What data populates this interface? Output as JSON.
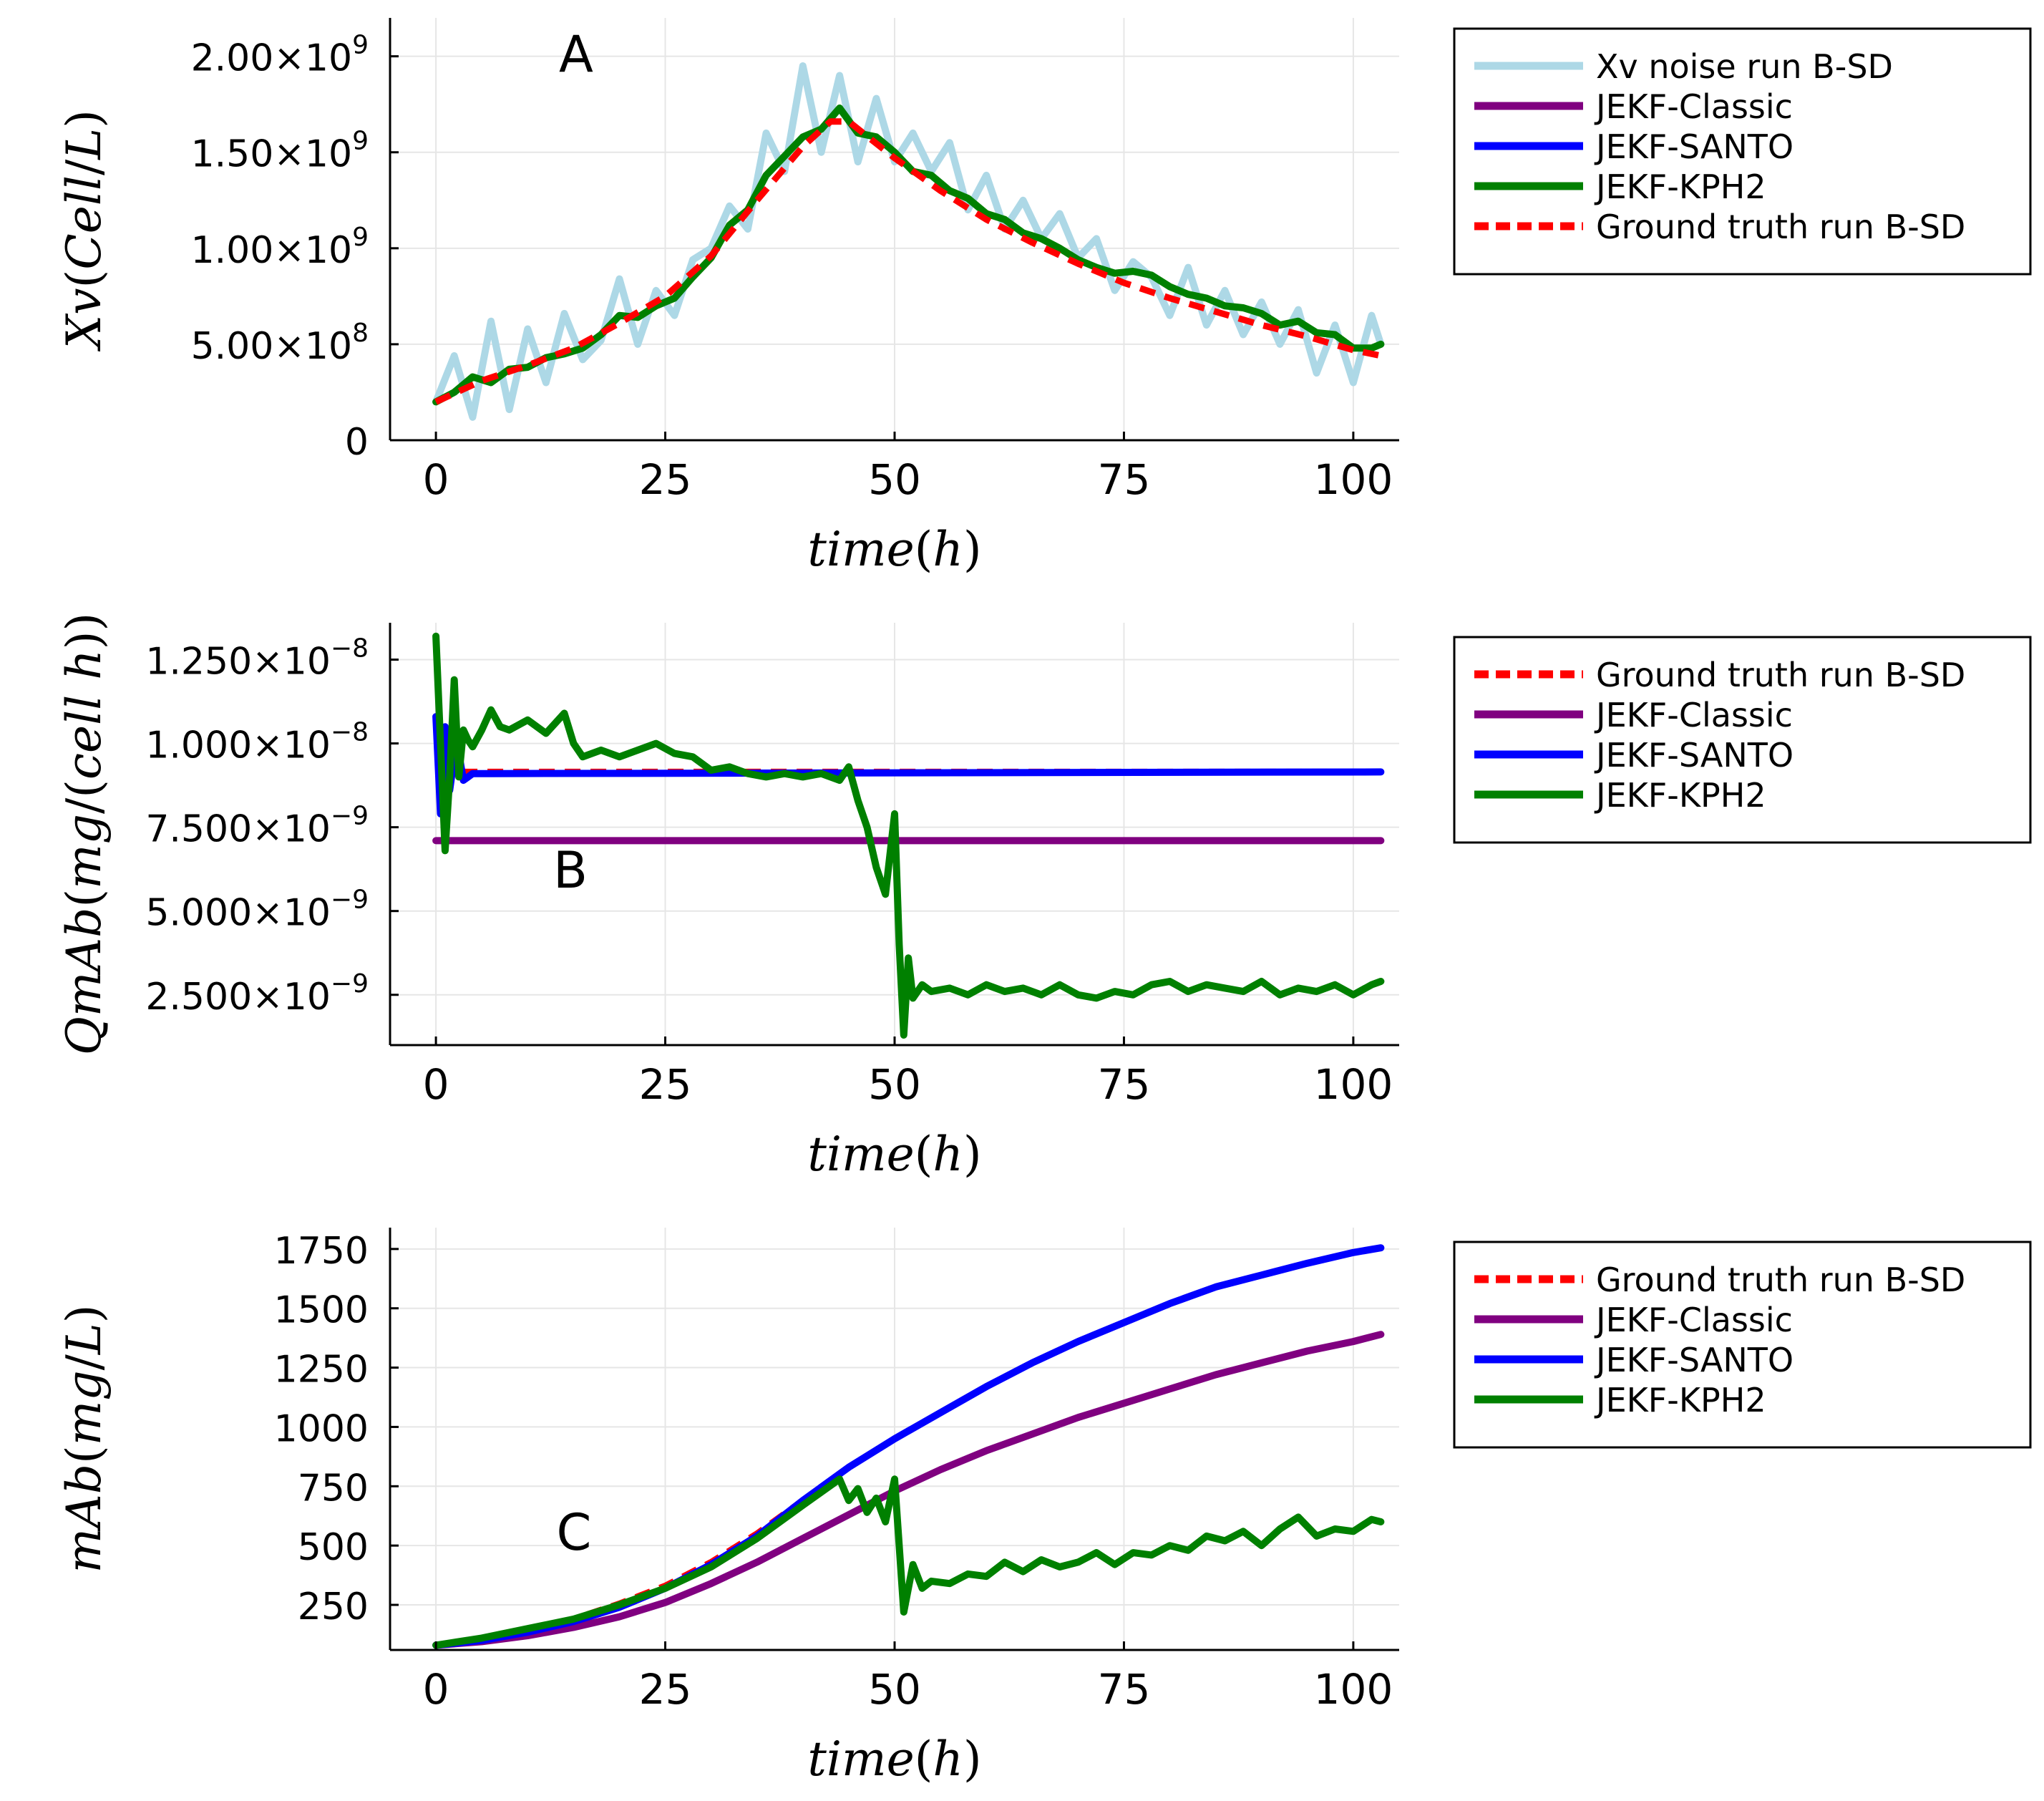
{
  "chart_data": [
    {
      "id": "A",
      "type": "line",
      "panel_label": "A",
      "xlabel": "time(h)",
      "ylabel": "Xv(Cell/L)",
      "xlim": [
        -5,
        105
      ],
      "ylim": [
        0,
        2200000000
      ],
      "xticks": [
        0,
        25,
        50,
        75,
        100
      ],
      "xtick_labels": [
        "0",
        "25",
        "50",
        "75",
        "100"
      ],
      "yticks": [
        0,
        500000000,
        1000000000,
        1500000000,
        2000000000
      ],
      "ytick_labels": [
        {
          "mant": "0",
          "exp": ""
        },
        {
          "mant": "5.00×10",
          "exp": "8"
        },
        {
          "mant": "1.00×10",
          "exp": "9"
        },
        {
          "mant": "1.50×10",
          "exp": "9"
        },
        {
          "mant": "2.00×10",
          "exp": "9"
        }
      ],
      "grid": true,
      "legend_position": "outside-right-top",
      "series": [
        {
          "name": "Xv noise run B-SD",
          "color": "#add8e6",
          "style": "solid",
          "x": [
            0,
            2,
            4,
            6,
            8,
            10,
            12,
            14,
            16,
            18,
            20,
            22,
            24,
            26,
            28,
            30,
            32,
            34,
            36,
            38,
            40,
            42,
            44,
            46,
            48,
            50,
            52,
            54,
            56,
            58,
            60,
            62,
            64,
            66,
            68,
            70,
            72,
            74,
            76,
            78,
            80,
            82,
            84,
            86,
            88,
            90,
            92,
            94,
            96,
            98,
            100,
            102,
            103
          ],
          "y": [
            200000000,
            440000000,
            120000000,
            620000000,
            160000000,
            580000000,
            300000000,
            660000000,
            420000000,
            520000000,
            840000000,
            500000000,
            780000000,
            650000000,
            940000000,
            1000000000,
            1220000000,
            1100000000,
            1600000000,
            1400000000,
            1950000000,
            1500000000,
            1900000000,
            1450000000,
            1780000000,
            1450000000,
            1600000000,
            1400000000,
            1550000000,
            1200000000,
            1380000000,
            1100000000,
            1250000000,
            1050000000,
            1180000000,
            950000000,
            1050000000,
            780000000,
            930000000,
            850000000,
            650000000,
            900000000,
            600000000,
            780000000,
            550000000,
            720000000,
            500000000,
            680000000,
            350000000,
            600000000,
            300000000,
            650000000,
            500000000
          ]
        },
        {
          "name": "JEKF-Classic",
          "color": "#800080",
          "style": "solid",
          "x": [],
          "y": []
        },
        {
          "name": "JEKF-SANTO",
          "color": "#0000ff",
          "style": "solid",
          "x": [],
          "y": []
        },
        {
          "name": "JEKF-KPH2",
          "color": "#008000",
          "style": "solid",
          "x": [
            0,
            2,
            4,
            6,
            8,
            10,
            12,
            14,
            16,
            18,
            20,
            22,
            24,
            26,
            28,
            30,
            32,
            34,
            36,
            38,
            40,
            42,
            44,
            46,
            48,
            50,
            52,
            54,
            56,
            58,
            60,
            62,
            64,
            66,
            68,
            70,
            72,
            74,
            76,
            78,
            80,
            82,
            84,
            86,
            88,
            90,
            92,
            94,
            96,
            98,
            100,
            102,
            103
          ],
          "y": [
            200000000,
            250000000,
            330000000,
            300000000,
            370000000,
            380000000,
            430000000,
            450000000,
            480000000,
            550000000,
            650000000,
            640000000,
            700000000,
            740000000,
            850000000,
            950000000,
            1120000000,
            1200000000,
            1380000000,
            1480000000,
            1580000000,
            1620000000,
            1730000000,
            1600000000,
            1580000000,
            1500000000,
            1400000000,
            1380000000,
            1300000000,
            1260000000,
            1180000000,
            1150000000,
            1080000000,
            1050000000,
            1000000000,
            940000000,
            900000000,
            870000000,
            880000000,
            860000000,
            800000000,
            760000000,
            740000000,
            700000000,
            690000000,
            660000000,
            600000000,
            620000000,
            560000000,
            550000000,
            480000000,
            480000000,
            500000000
          ]
        },
        {
          "name": "Ground truth run B-SD",
          "color": "#ff0000",
          "style": "dashed",
          "x": [
            0,
            5,
            10,
            15,
            20,
            25,
            30,
            35,
            40,
            43,
            45,
            50,
            55,
            60,
            65,
            70,
            75,
            80,
            85,
            90,
            95,
            100,
            103
          ],
          "y": [
            200000000,
            310000000,
            390000000,
            480000000,
            610000000,
            750000000,
            960000000,
            1250000000,
            1530000000,
            1660000000,
            1660000000,
            1470000000,
            1300000000,
            1150000000,
            1030000000,
            920000000,
            820000000,
            740000000,
            670000000,
            600000000,
            540000000,
            470000000,
            440000000
          ]
        }
      ]
    },
    {
      "id": "B",
      "type": "line",
      "panel_label": "B",
      "xlabel": "time(h)",
      "ylabel": "QmAb(mg/(cell h))",
      "xlim": [
        -5,
        105
      ],
      "ylim": [
        1e-09,
        1.36e-08
      ],
      "xticks": [
        0,
        25,
        50,
        75,
        100
      ],
      "xtick_labels": [
        "0",
        "25",
        "50",
        "75",
        "100"
      ],
      "yticks": [
        2.5e-09,
        5e-09,
        7.5e-09,
        1e-08,
        1.25e-08
      ],
      "ytick_labels": [
        {
          "mant": "2.500×10",
          "exp": "−9"
        },
        {
          "mant": "5.000×10",
          "exp": "−9"
        },
        {
          "mant": "7.500×10",
          "exp": "−9"
        },
        {
          "mant": "1.000×10",
          "exp": "−8"
        },
        {
          "mant": "1.250×10",
          "exp": "−8"
        }
      ],
      "grid": true,
      "legend_position": "outside-right-top",
      "series": [
        {
          "name": "Ground truth run B-SD",
          "color": "#ff0000",
          "style": "dashed",
          "x": [
            0,
            103
          ],
          "y": [
            9.15e-09,
            9.15e-09
          ]
        },
        {
          "name": "JEKF-Classic",
          "color": "#800080",
          "style": "solid",
          "x": [
            0,
            103
          ],
          "y": [
            7.1e-09,
            7.1e-09
          ]
        },
        {
          "name": "JEKF-SANTO",
          "color": "#0000ff",
          "style": "solid",
          "x": [
            0,
            0.5,
            1,
            1.5,
            2,
            2.5,
            3,
            3.5,
            4,
            6,
            103
          ],
          "y": [
            1.08e-08,
            7.9e-09,
            1.05e-08,
            8.6e-09,
            9.6e-09,
            9.7e-09,
            8.9e-09,
            9e-09,
            9.1e-09,
            9.1e-09,
            9.15e-09
          ]
        },
        {
          "name": "JEKF-KPH2",
          "color": "#008000",
          "style": "solid",
          "x": [
            0,
            0.5,
            1,
            1.5,
            2,
            2.5,
            3,
            3.5,
            4,
            5,
            6,
            7,
            8,
            10,
            12,
            14,
            15,
            16,
            18,
            20,
            22,
            24,
            26,
            28,
            30,
            32,
            34,
            36,
            38,
            40,
            42,
            44,
            45,
            46,
            47,
            48,
            49,
            50,
            50.5,
            51,
            51.5,
            52,
            53,
            54,
            56,
            58,
            60,
            62,
            64,
            66,
            68,
            70,
            72,
            74,
            76,
            78,
            80,
            82,
            84,
            86,
            88,
            90,
            92,
            94,
            96,
            98,
            100,
            102,
            103
          ],
          "y": [
            1.32e-08,
            1e-08,
            6.8e-09,
            9e-09,
            1.19e-08,
            9e-09,
            1.04e-08,
            1.01e-08,
            9.9e-09,
            1.04e-08,
            1.1e-08,
            1.05e-08,
            1.04e-08,
            1.07e-08,
            1.03e-08,
            1.09e-08,
            1e-08,
            9.6e-09,
            9.8e-09,
            9.6e-09,
            9.8e-09,
            1e-08,
            9.7e-09,
            9.6e-09,
            9.2e-09,
            9.3e-09,
            9.1e-09,
            9e-09,
            9.1e-09,
            9e-09,
            9.1e-09,
            8.9e-09,
            9.3e-09,
            8.3e-09,
            7.5e-09,
            6.3e-09,
            5.5e-09,
            7.9e-09,
            4e-09,
            1.3e-09,
            3.6e-09,
            2.4e-09,
            2.8e-09,
            2.6e-09,
            2.7e-09,
            2.5e-09,
            2.8e-09,
            2.6e-09,
            2.7e-09,
            2.5e-09,
            2.8e-09,
            2.5e-09,
            2.4e-09,
            2.6e-09,
            2.5e-09,
            2.8e-09,
            2.9e-09,
            2.6e-09,
            2.8e-09,
            2.7e-09,
            2.6e-09,
            2.9e-09,
            2.5e-09,
            2.7e-09,
            2.6e-09,
            2.8e-09,
            2.5e-09,
            2.8e-09,
            2.9e-09
          ]
        }
      ]
    },
    {
      "id": "C",
      "type": "line",
      "panel_label": "C",
      "xlabel": "time(h)",
      "ylabel": "mAb(mg/L)",
      "xlim": [
        -5,
        105
      ],
      "ylim": [
        60,
        1840
      ],
      "xticks": [
        0,
        25,
        50,
        75,
        100
      ],
      "xtick_labels": [
        "0",
        "25",
        "50",
        "75",
        "100"
      ],
      "yticks": [
        250,
        500,
        750,
        1000,
        1250,
        1500,
        1750
      ],
      "ytick_labels": [
        {
          "mant": "250",
          "exp": ""
        },
        {
          "mant": "500",
          "exp": ""
        },
        {
          "mant": "750",
          "exp": ""
        },
        {
          "mant": "1000",
          "exp": ""
        },
        {
          "mant": "1250",
          "exp": ""
        },
        {
          "mant": "1500",
          "exp": ""
        },
        {
          "mant": "1750",
          "exp": ""
        }
      ],
      "grid": true,
      "legend_position": "outside-right-top",
      "series": [
        {
          "name": "Ground truth run B-SD",
          "color": "#ff0000",
          "style": "dashed",
          "x": [
            0,
            5,
            10,
            15,
            20,
            25,
            30,
            35,
            40,
            45,
            50,
            55,
            60,
            65,
            70,
            75,
            80,
            85,
            90,
            95,
            100,
            103
          ],
          "y": [
            80,
            105,
            140,
            190,
            255,
            330,
            430,
            550,
            690,
            830,
            950,
            1060,
            1170,
            1270,
            1360,
            1440,
            1520,
            1590,
            1640,
            1690,
            1735,
            1755
          ]
        },
        {
          "name": "JEKF-Classic",
          "color": "#800080",
          "style": "solid",
          "x": [
            0,
            5,
            10,
            15,
            20,
            25,
            30,
            35,
            40,
            45,
            50,
            55,
            60,
            65,
            70,
            75,
            80,
            85,
            90,
            95,
            100,
            103
          ],
          "y": [
            80,
            95,
            120,
            155,
            200,
            260,
            340,
            430,
            530,
            630,
            730,
            820,
            900,
            970,
            1040,
            1100,
            1160,
            1220,
            1270,
            1320,
            1360,
            1390
          ]
        },
        {
          "name": "JEKF-SANTO",
          "color": "#0000ff",
          "style": "solid",
          "x": [
            0,
            5,
            10,
            15,
            20,
            25,
            30,
            35,
            40,
            45,
            50,
            55,
            60,
            65,
            70,
            75,
            80,
            85,
            90,
            95,
            100,
            103
          ],
          "y": [
            80,
            100,
            135,
            180,
            240,
            320,
            420,
            540,
            690,
            830,
            950,
            1060,
            1170,
            1270,
            1360,
            1440,
            1520,
            1590,
            1640,
            1690,
            1735,
            1755
          ]
        },
        {
          "name": "JEKF-KPH2",
          "color": "#008000",
          "style": "solid",
          "x": [
            0,
            5,
            10,
            15,
            20,
            25,
            30,
            35,
            40,
            44,
            45,
            46,
            47,
            48,
            49,
            50,
            50.5,
            51,
            52,
            53,
            54,
            56,
            58,
            60,
            62,
            64,
            66,
            68,
            70,
            72,
            74,
            76,
            78,
            80,
            82,
            84,
            86,
            88,
            90,
            92,
            94,
            96,
            98,
            100,
            102,
            103
          ],
          "y": [
            80,
            110,
            150,
            190,
            250,
            320,
            410,
            530,
            670,
            780,
            690,
            740,
            640,
            700,
            600,
            780,
            500,
            220,
            420,
            320,
            350,
            340,
            380,
            370,
            430,
            390,
            440,
            410,
            430,
            470,
            420,
            470,
            460,
            500,
            480,
            540,
            520,
            560,
            500,
            570,
            620,
            540,
            570,
            560,
            610,
            600
          ]
        }
      ]
    }
  ]
}
